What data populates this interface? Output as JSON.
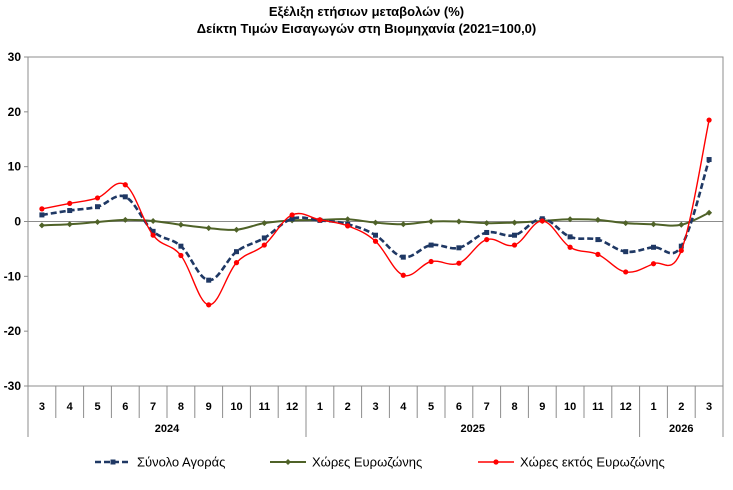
{
  "chart_data": {
    "type": "line",
    "title": "Εξέλιξη ετήσιων μεταβολών (%)",
    "subtitle": "Δείκτη Τιμών Εισαγωγών στη Βιομηχανία (2021=100,0)",
    "ylim": [
      -30,
      30
    ],
    "yticks": [
      30,
      20,
      10,
      0,
      -10,
      -20,
      -30
    ],
    "grid": false,
    "legend_position": "bottom",
    "categories": [
      "3",
      "4",
      "5",
      "6",
      "7",
      "8",
      "9",
      "10",
      "11",
      "12",
      "1",
      "2",
      "3",
      "4",
      "5",
      "6",
      "7",
      "8",
      "9",
      "10",
      "11",
      "12",
      "1",
      "2",
      "3"
    ],
    "year_groups": [
      {
        "label": "2024",
        "count": 10
      },
      {
        "label": "2025",
        "count": 12
      },
      {
        "label": "2026",
        "count": 3
      }
    ],
    "series": [
      {
        "name": "Σύνολο Αγοράς",
        "color": "#1f3864",
        "style": "dashed",
        "marker": "square",
        "values": [
          1.2,
          2.0,
          2.7,
          4.5,
          -1.8,
          -4.5,
          -10.7,
          -5.5,
          -3.0,
          0.5,
          0.2,
          -0.5,
          -2.5,
          -6.5,
          -4.3,
          -4.8,
          -2.0,
          -2.5,
          0.5,
          -2.8,
          -3.3,
          -5.5,
          -4.7,
          -4.5,
          11.3
        ]
      },
      {
        "name": "Χώρες Ευρωζώνης",
        "color": "#4f6228",
        "style": "solid",
        "marker": "diamond",
        "values": [
          -0.7,
          -0.5,
          -0.1,
          0.3,
          0.1,
          -0.6,
          -1.2,
          -1.5,
          -0.3,
          0.2,
          0.3,
          0.4,
          -0.2,
          -0.5,
          0.0,
          0.0,
          -0.3,
          -0.2,
          0.1,
          0.4,
          0.3,
          -0.3,
          -0.5,
          -0.6,
          1.6
        ]
      },
      {
        "name": "Χώρες εκτός Ευρωζώνης",
        "color": "#ff0000",
        "style": "solid",
        "marker": "circle",
        "values": [
          2.3,
          3.3,
          4.3,
          6.7,
          -2.5,
          -6.2,
          -15.2,
          -7.5,
          -4.3,
          1.2,
          0.3,
          -0.8,
          -3.6,
          -9.8,
          -7.3,
          -7.6,
          -3.3,
          -4.3,
          0.1,
          -4.7,
          -6.0,
          -9.2,
          -7.7,
          -5.3,
          18.5
        ]
      }
    ]
  }
}
